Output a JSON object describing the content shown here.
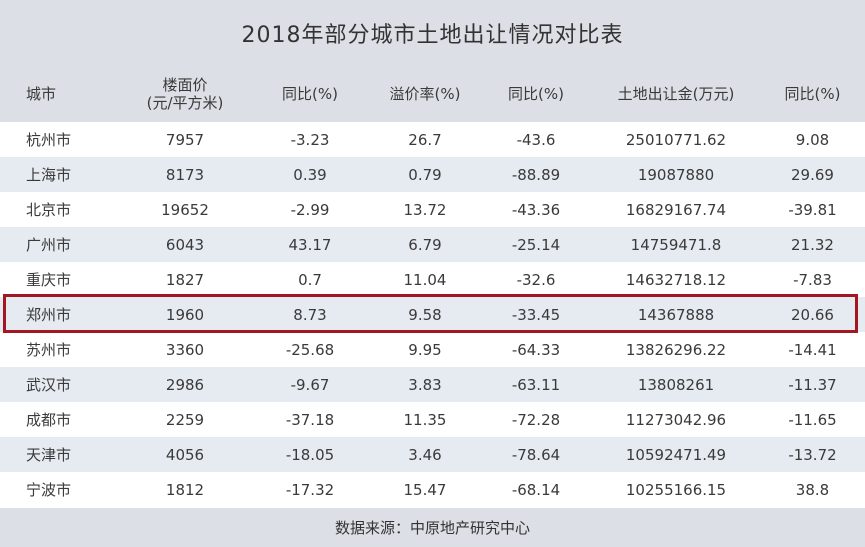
{
  "title": "2018年部分城市土地出让情况对比表",
  "headers": {
    "city": "城市",
    "floor_price_line1": "楼面价",
    "floor_price_line2": "(元/平方米)",
    "yoy1": "同比(%)",
    "premium_rate": "溢价率(%)",
    "yoy2": "同比(%)",
    "land_revenue": "土地出让金(万元)",
    "yoy3": "同比(%)"
  },
  "rows": [
    {
      "city": "杭州市",
      "floor_price": "7957",
      "yoy1": "-3.23",
      "premium": "26.7",
      "yoy2": "-43.6",
      "revenue": "25010771.62",
      "yoy3": "9.08"
    },
    {
      "city": "上海市",
      "floor_price": "8173",
      "yoy1": "0.39",
      "premium": "0.79",
      "yoy2": "-88.89",
      "revenue": "19087880",
      "yoy3": "29.69"
    },
    {
      "city": "北京市",
      "floor_price": "19652",
      "yoy1": "-2.99",
      "premium": "13.72",
      "yoy2": "-43.36",
      "revenue": "16829167.74",
      "yoy3": "-39.81"
    },
    {
      "city": "广州市",
      "floor_price": "6043",
      "yoy1": "43.17",
      "premium": "6.79",
      "yoy2": "-25.14",
      "revenue": "14759471.8",
      "yoy3": "21.32"
    },
    {
      "city": "重庆市",
      "floor_price": "1827",
      "yoy1": "0.7",
      "premium": "11.04",
      "yoy2": "-32.6",
      "revenue": "14632718.12",
      "yoy3": "-7.83"
    },
    {
      "city": "郑州市",
      "floor_price": "1960",
      "yoy1": "8.73",
      "premium": "9.58",
      "yoy2": "-33.45",
      "revenue": "14367888",
      "yoy3": "20.66"
    },
    {
      "city": "苏州市",
      "floor_price": "3360",
      "yoy1": "-25.68",
      "premium": "9.95",
      "yoy2": "-64.33",
      "revenue": "13826296.22",
      "yoy3": "-14.41"
    },
    {
      "city": "武汉市",
      "floor_price": "2986",
      "yoy1": "-9.67",
      "premium": "3.83",
      "yoy2": "-63.11",
      "revenue": "13808261",
      "yoy3": "-11.37"
    },
    {
      "city": "成都市",
      "floor_price": "2259",
      "yoy1": "-37.18",
      "premium": "11.35",
      "yoy2": "-72.28",
      "revenue": "11273042.96",
      "yoy3": "-11.65"
    },
    {
      "city": "天津市",
      "floor_price": "4056",
      "yoy1": "-18.05",
      "premium": "3.46",
      "yoy2": "-78.64",
      "revenue": "10592471.49",
      "yoy3": "-13.72"
    },
    {
      "city": "宁波市",
      "floor_price": "1812",
      "yoy1": "-17.32",
      "premium": "15.47",
      "yoy2": "-68.14",
      "revenue": "10255166.15",
      "yoy3": "38.8"
    }
  ],
  "highlighted_city": "郑州市",
  "footer": "数据来源：中原地产研究中心",
  "colors": {
    "header_bg": "#dcdfe5",
    "alt_row_bg": "#e6ebf2",
    "highlight_border": "#a31722"
  }
}
